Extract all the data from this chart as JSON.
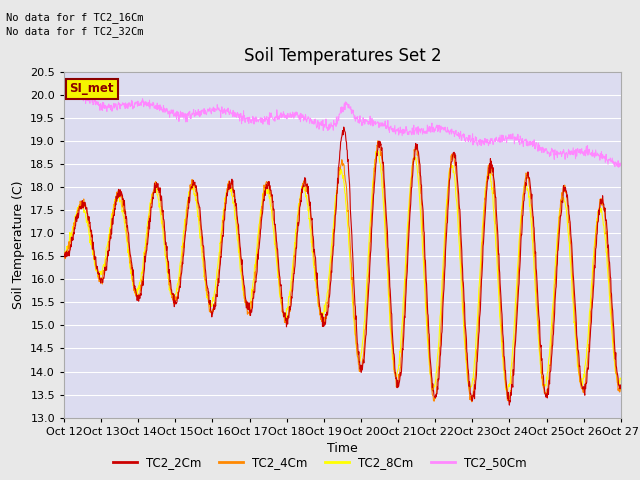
{
  "title": "Soil Temperatures Set 2",
  "xlabel": "Time",
  "ylabel": "Soil Temperature (C)",
  "ylim": [
    13.0,
    20.5
  ],
  "yticks": [
    13.0,
    13.5,
    14.0,
    14.5,
    15.0,
    15.5,
    16.0,
    16.5,
    17.0,
    17.5,
    18.0,
    18.5,
    19.0,
    19.5,
    20.0,
    20.5
  ],
  "xtick_labels": [
    "Oct 12",
    "Oct 13",
    "Oct 14",
    "Oct 15",
    "Oct 16",
    "Oct 17",
    "Oct 18",
    "Oct 19",
    "Oct 20",
    "Oct 21",
    "Oct 22",
    "Oct 23",
    "Oct 24",
    "Oct 25",
    "Oct 26",
    "Oct 27"
  ],
  "colors": {
    "TC2_2Cm": "#cc0000",
    "TC2_4Cm": "#ff8800",
    "TC2_8Cm": "#ffff00",
    "TC2_50Cm": "#ff88ff"
  },
  "legend_labels": [
    "TC2_2Cm",
    "TC2_4Cm",
    "TC2_8Cm",
    "TC2_50Cm"
  ],
  "top_left_text": [
    "No data for f TC2_16Cm",
    "No data for f TC2_32Cm"
  ],
  "si_met_label": "SI_met",
  "background_color": "#e8e8e8",
  "plot_bg_color": "#dcdcf0",
  "grid_color": "#ffffff",
  "title_fontsize": 12,
  "axis_label_fontsize": 9,
  "tick_fontsize": 8
}
